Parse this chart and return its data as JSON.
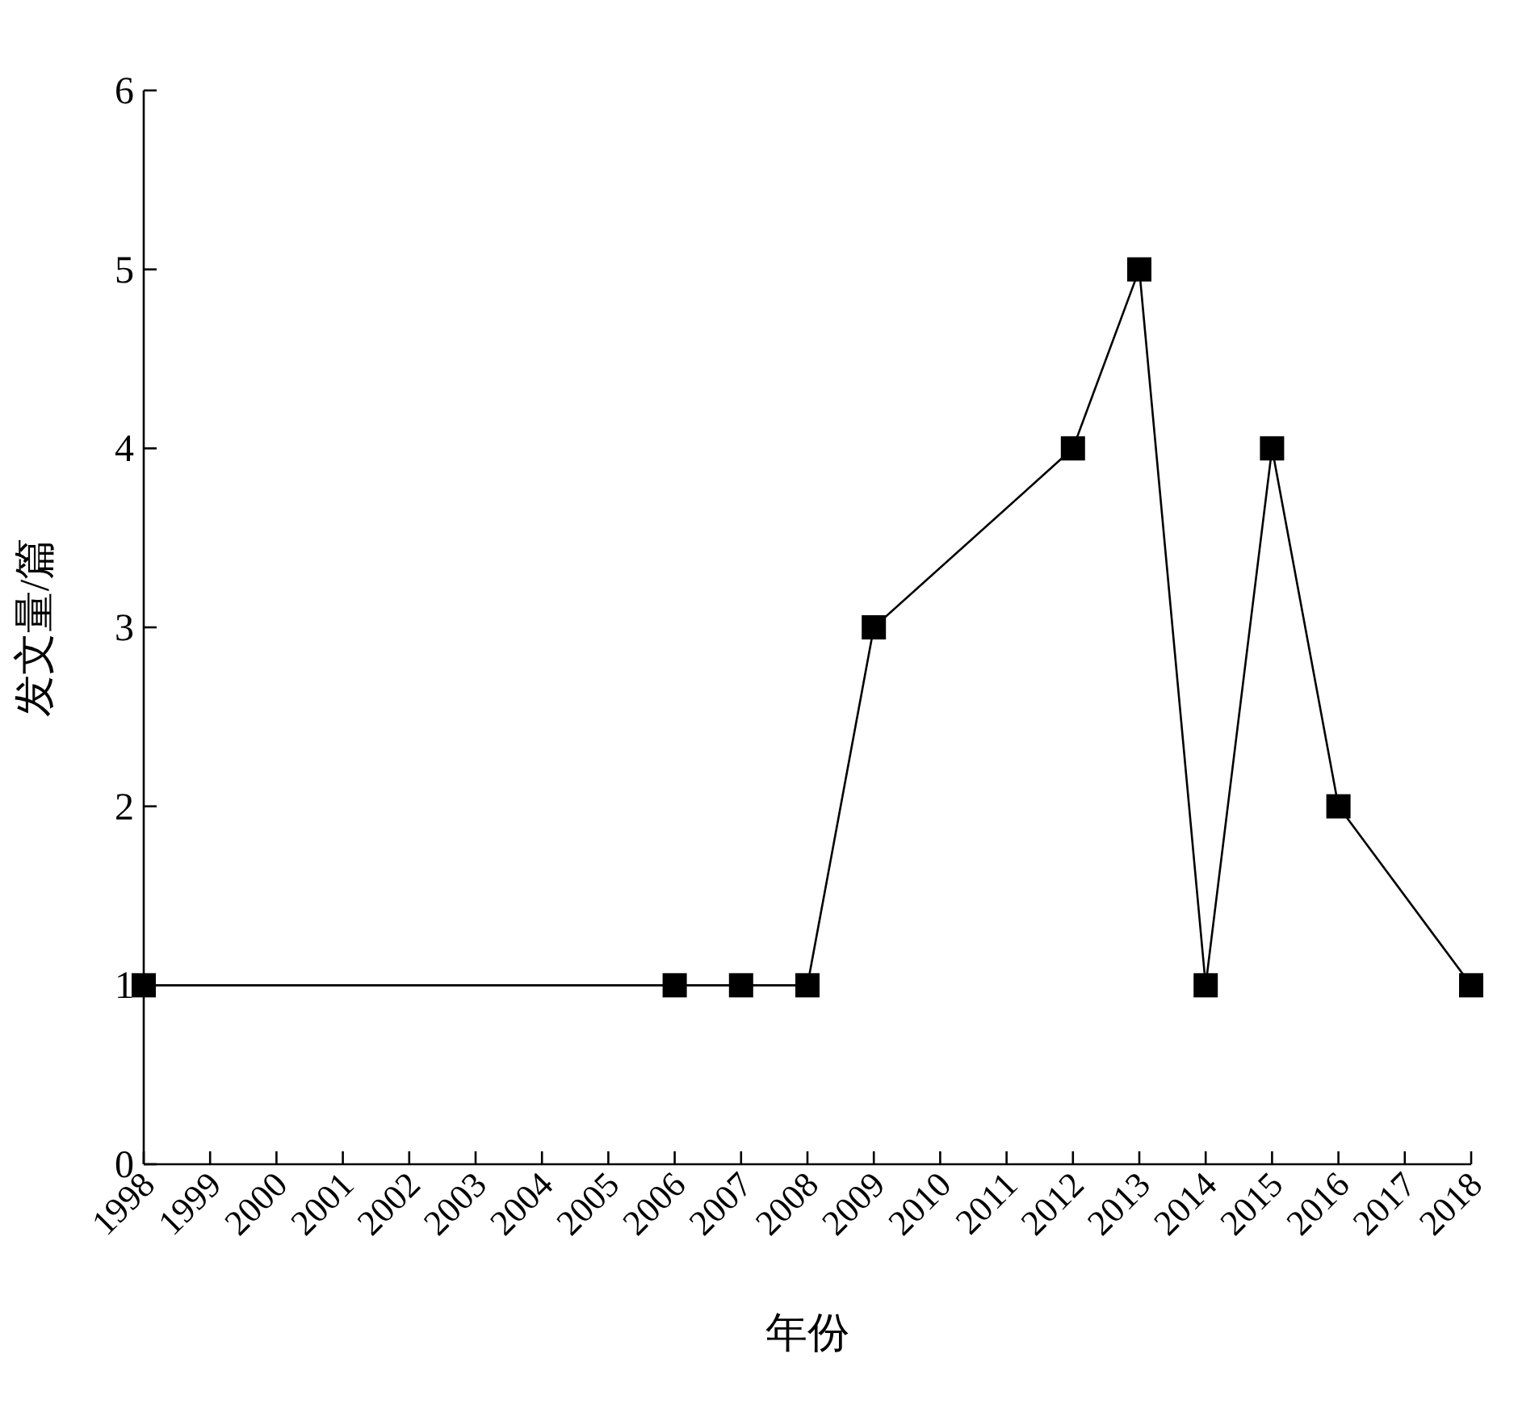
{
  "chart_data": {
    "type": "line",
    "xlabel": "年份",
    "ylabel": "发文量/篇",
    "x": [
      1998,
      2006,
      2007,
      2008,
      2009,
      2012,
      2013,
      2014,
      2015,
      2016,
      2018
    ],
    "series": [
      {
        "color": "#000000",
        "values": [
          1,
          1,
          1,
          1,
          3,
          4,
          5,
          1,
          4,
          2,
          1
        ]
      }
    ],
    "xlim": [
      1998,
      2018
    ],
    "xticks": [
      1998,
      1999,
      2000,
      2001,
      2002,
      2003,
      2004,
      2005,
      2006,
      2007,
      2008,
      2009,
      2010,
      2011,
      2012,
      2013,
      2014,
      2015,
      2016,
      2017,
      2018
    ],
    "ylim": [
      0,
      6
    ],
    "yticks": [
      0,
      1,
      2,
      3,
      4,
      5,
      6
    ],
    "marker": "square",
    "line_style": "solid",
    "grid": false
  }
}
